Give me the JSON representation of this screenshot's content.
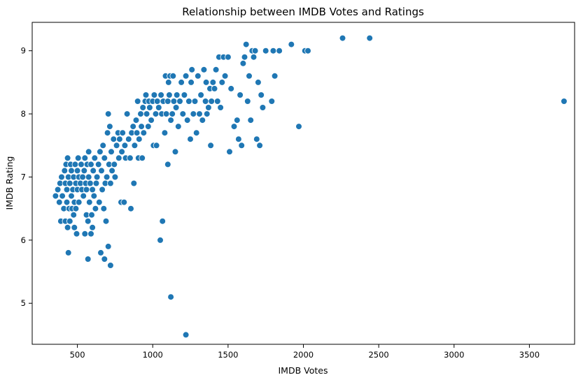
{
  "chart_data": {
    "type": "scatter",
    "title": "Relationship between IMDB Votes and Ratings",
    "xlabel": "IMDB Votes",
    "ylabel": "IMDB Rating",
    "xlim": [
      200,
      3800
    ],
    "ylim": [
      4.35,
      9.45
    ],
    "xticks": [
      500,
      1000,
      1500,
      2000,
      2500,
      3000,
      3500
    ],
    "yticks": [
      5,
      6,
      7,
      8,
      9
    ],
    "grid": false,
    "legend": "none",
    "color": "#1f77b4",
    "points": [
      [
        355,
        6.7
      ],
      [
        370,
        6.8
      ],
      [
        380,
        6.6
      ],
      [
        385,
        6.9
      ],
      [
        390,
        6.3
      ],
      [
        395,
        7.0
      ],
      [
        400,
        6.7
      ],
      [
        410,
        6.5
      ],
      [
        415,
        7.1
      ],
      [
        420,
        6.3
      ],
      [
        420,
        6.9
      ],
      [
        425,
        7.2
      ],
      [
        430,
        6.8
      ],
      [
        430,
        6.6
      ],
      [
        435,
        6.2
      ],
      [
        435,
        7.3
      ],
      [
        440,
        5.8
      ],
      [
        440,
        7.0
      ],
      [
        445,
        6.5
      ],
      [
        450,
        6.9
      ],
      [
        450,
        6.3
      ],
      [
        455,
        7.2
      ],
      [
        460,
        6.7
      ],
      [
        460,
        7.1
      ],
      [
        465,
        6.5
      ],
      [
        470,
        6.8
      ],
      [
        475,
        6.4
      ],
      [
        475,
        7.0
      ],
      [
        480,
        6.2
      ],
      [
        480,
        6.6
      ],
      [
        485,
        7.2
      ],
      [
        490,
        6.9
      ],
      [
        490,
        6.5
      ],
      [
        495,
        6.1
      ],
      [
        500,
        7.1
      ],
      [
        500,
        6.8
      ],
      [
        505,
        7.3
      ],
      [
        510,
        6.6
      ],
      [
        510,
        7.0
      ],
      [
        520,
        6.9
      ],
      [
        525,
        7.2
      ],
      [
        530,
        6.8
      ],
      [
        535,
        7.0
      ],
      [
        540,
        6.7
      ],
      [
        545,
        7.1
      ],
      [
        550,
        6.1
      ],
      [
        550,
        7.3
      ],
      [
        555,
        6.9
      ],
      [
        560,
        6.4
      ],
      [
        560,
        6.8
      ],
      [
        565,
        7.2
      ],
      [
        570,
        5.7
      ],
      [
        570,
        6.3
      ],
      [
        575,
        7.0
      ],
      [
        575,
        7.4
      ],
      [
        580,
        6.6
      ],
      [
        585,
        6.9
      ],
      [
        590,
        6.1
      ],
      [
        590,
        7.2
      ],
      [
        595,
        6.4
      ],
      [
        600,
        6.8
      ],
      [
        600,
        6.2
      ],
      [
        605,
        7.1
      ],
      [
        610,
        6.7
      ],
      [
        615,
        7.3
      ],
      [
        620,
        6.5
      ],
      [
        625,
        6.9
      ],
      [
        630,
        7.0
      ],
      [
        640,
        7.2
      ],
      [
        645,
        6.6
      ],
      [
        650,
        7.4
      ],
      [
        655,
        5.8
      ],
      [
        660,
        7.1
      ],
      [
        665,
        6.8
      ],
      [
        670,
        7.5
      ],
      [
        675,
        6.5
      ],
      [
        680,
        5.7
      ],
      [
        680,
        7.3
      ],
      [
        685,
        6.9
      ],
      [
        690,
        6.3
      ],
      [
        695,
        7.0
      ],
      [
        700,
        7.7
      ],
      [
        705,
        8.0
      ],
      [
        705,
        5.9
      ],
      [
        710,
        7.2
      ],
      [
        715,
        7.8
      ],
      [
        720,
        5.6
      ],
      [
        720,
        6.9
      ],
      [
        725,
        7.4
      ],
      [
        730,
        7.1
      ],
      [
        740,
        7.6
      ],
      [
        745,
        7.2
      ],
      [
        750,
        7.0
      ],
      [
        760,
        7.5
      ],
      [
        770,
        7.7
      ],
      [
        775,
        7.3
      ],
      [
        780,
        7.6
      ],
      [
        790,
        6.6
      ],
      [
        795,
        7.4
      ],
      [
        800,
        7.7
      ],
      [
        810,
        6.6
      ],
      [
        815,
        7.5
      ],
      [
        820,
        7.3
      ],
      [
        830,
        8.0
      ],
      [
        840,
        7.6
      ],
      [
        850,
        7.3
      ],
      [
        855,
        6.5
      ],
      [
        860,
        7.7
      ],
      [
        870,
        7.8
      ],
      [
        875,
        6.9
      ],
      [
        880,
        7.5
      ],
      [
        890,
        7.9
      ],
      [
        895,
        7.7
      ],
      [
        900,
        8.2
      ],
      [
        905,
        7.3
      ],
      [
        910,
        7.6
      ],
      [
        920,
        8.0
      ],
      [
        925,
        7.8
      ],
      [
        930,
        7.3
      ],
      [
        935,
        8.1
      ],
      [
        940,
        7.7
      ],
      [
        950,
        8.2
      ],
      [
        955,
        8.3
      ],
      [
        960,
        8.0
      ],
      [
        970,
        7.8
      ],
      [
        975,
        8.2
      ],
      [
        980,
        8.1
      ],
      [
        990,
        7.9
      ],
      [
        1000,
        8.2
      ],
      [
        1005,
        7.5
      ],
      [
        1010,
        8.3
      ],
      [
        1020,
        8.0
      ],
      [
        1025,
        7.5
      ],
      [
        1030,
        8.2
      ],
      [
        1040,
        8.1
      ],
      [
        1050,
        6.0
      ],
      [
        1055,
        8.3
      ],
      [
        1060,
        8.0
      ],
      [
        1065,
        6.3
      ],
      [
        1070,
        8.2
      ],
      [
        1080,
        7.7
      ],
      [
        1085,
        8.6
      ],
      [
        1090,
        8.0
      ],
      [
        1100,
        8.2
      ],
      [
        1100,
        7.2
      ],
      [
        1105,
        8.5
      ],
      [
        1110,
        8.3
      ],
      [
        1115,
        8.6
      ],
      [
        1120,
        5.1
      ],
      [
        1120,
        7.9
      ],
      [
        1130,
        8.0
      ],
      [
        1135,
        8.6
      ],
      [
        1140,
        8.2
      ],
      [
        1150,
        7.4
      ],
      [
        1155,
        8.1
      ],
      [
        1160,
        8.3
      ],
      [
        1170,
        7.8
      ],
      [
        1180,
        8.2
      ],
      [
        1190,
        8.5
      ],
      [
        1200,
        8.0
      ],
      [
        1210,
        8.3
      ],
      [
        1220,
        4.5
      ],
      [
        1220,
        8.6
      ],
      [
        1230,
        7.9
      ],
      [
        1240,
        8.2
      ],
      [
        1250,
        7.6
      ],
      [
        1255,
        8.5
      ],
      [
        1260,
        8.7
      ],
      [
        1270,
        8.0
      ],
      [
        1280,
        8.2
      ],
      [
        1290,
        7.7
      ],
      [
        1300,
        8.6
      ],
      [
        1310,
        8.0
      ],
      [
        1320,
        8.3
      ],
      [
        1330,
        7.9
      ],
      [
        1340,
        8.7
      ],
      [
        1350,
        8.2
      ],
      [
        1355,
        8.5
      ],
      [
        1360,
        8.0
      ],
      [
        1370,
        8.1
      ],
      [
        1380,
        8.4
      ],
      [
        1385,
        7.5
      ],
      [
        1390,
        8.2
      ],
      [
        1400,
        8.5
      ],
      [
        1410,
        8.4
      ],
      [
        1420,
        8.7
      ],
      [
        1430,
        8.2
      ],
      [
        1440,
        8.9
      ],
      [
        1450,
        8.1
      ],
      [
        1460,
        8.5
      ],
      [
        1470,
        8.9
      ],
      [
        1480,
        8.6
      ],
      [
        1500,
        8.9
      ],
      [
        1520,
        8.4
      ],
      [
        1510,
        7.4
      ],
      [
        1540,
        7.8
      ],
      [
        1560,
        7.9
      ],
      [
        1570,
        7.6
      ],
      [
        1580,
        8.3
      ],
      [
        1590,
        7.5
      ],
      [
        1600,
        8.8
      ],
      [
        1610,
        8.9
      ],
      [
        1620,
        9.1
      ],
      [
        1630,
        8.2
      ],
      [
        1640,
        8.6
      ],
      [
        1650,
        7.9
      ],
      [
        1660,
        9.0
      ],
      [
        1670,
        8.9
      ],
      [
        1680,
        9.0
      ],
      [
        1690,
        7.6
      ],
      [
        1700,
        8.5
      ],
      [
        1710,
        7.5
      ],
      [
        1720,
        8.3
      ],
      [
        1730,
        8.1
      ],
      [
        1750,
        9.0
      ],
      [
        1790,
        8.2
      ],
      [
        1800,
        9.0
      ],
      [
        1810,
        8.6
      ],
      [
        1840,
        9.0
      ],
      [
        1920,
        9.1
      ],
      [
        1970,
        7.8
      ],
      [
        2010,
        9.0
      ],
      [
        2030,
        9.0
      ],
      [
        2260,
        9.2
      ],
      [
        2440,
        9.2
      ],
      [
        3730,
        8.2
      ]
    ]
  }
}
